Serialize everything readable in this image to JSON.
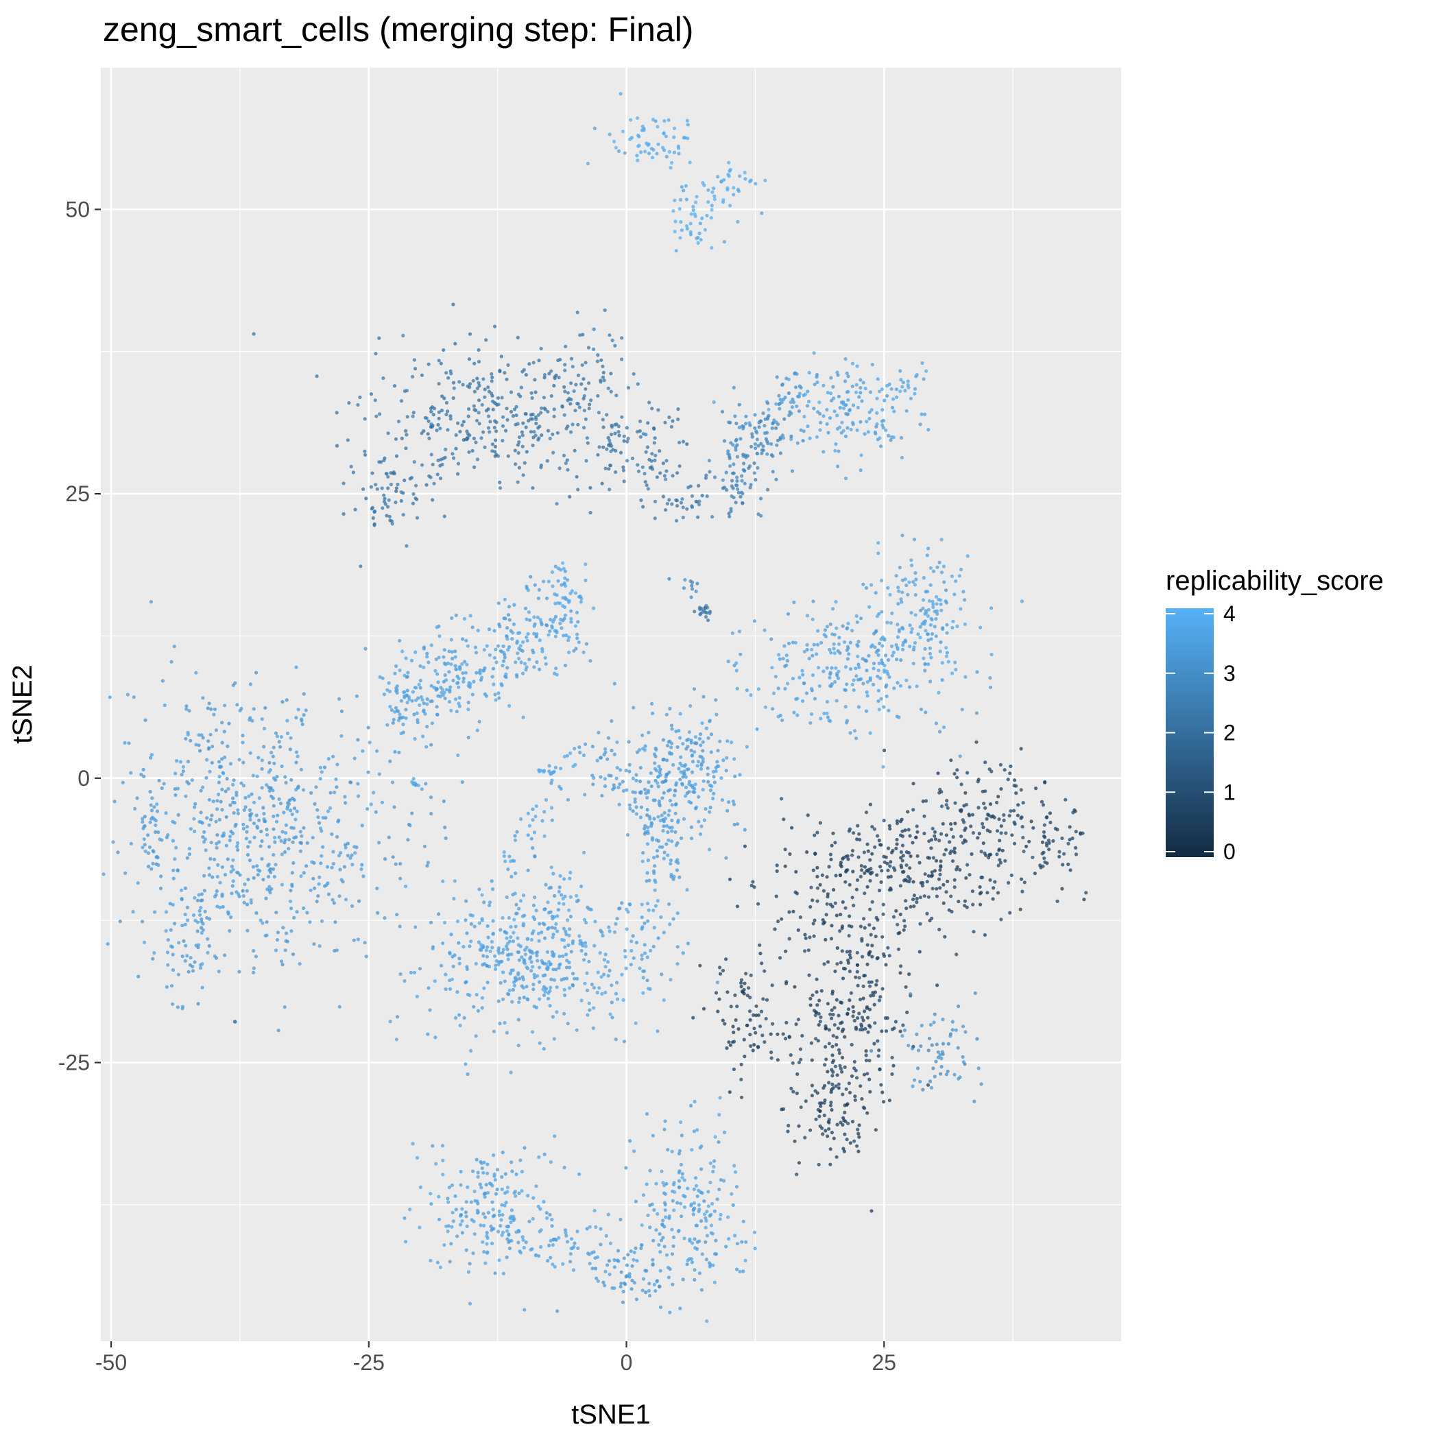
{
  "chart_data": {
    "type": "scatter",
    "title": "zeng_smart_cells (merging step: Final)",
    "xlabel": "tSNE1",
    "ylabel": "tSNE2",
    "xlim": [
      -51,
      48
    ],
    "ylim": [
      -49.5,
      62.5
    ],
    "x_ticks": [
      -50,
      -25,
      0,
      25
    ],
    "x_tick_labels": [
      "-50",
      "-25",
      "0",
      "25"
    ],
    "y_ticks": [
      -25,
      0,
      25,
      50
    ],
    "y_tick_labels": [
      "-25",
      "0",
      "25",
      "50"
    ],
    "grid": true,
    "legend": {
      "title": "replicability_score",
      "position": "right",
      "type": "colorbar",
      "range": [
        0,
        4
      ],
      "ticks": [
        0,
        1,
        2,
        3,
        4
      ],
      "tick_labels": [
        "0",
        "1",
        "2",
        "3",
        "4"
      ],
      "low_color": "#132B43",
      "high_color": "#56B1F7"
    },
    "background_color": "#EBEBEB",
    "grid_color": "#FFFFFF",
    "clusters": [
      {
        "cx": 3,
        "cy": 56,
        "sx": 2.2,
        "sy": 1.4,
        "n": 60,
        "score": 3.8
      },
      {
        "cx": 10,
        "cy": 52,
        "sx": 1.4,
        "sy": 1.2,
        "n": 35,
        "score": 3.8
      },
      {
        "cx": 6,
        "cy": 49.5,
        "sx": 1.6,
        "sy": 1.5,
        "n": 40,
        "score": 3.8
      },
      {
        "cx": -23,
        "cy": 24.5,
        "sx": 1.8,
        "sy": 1.4,
        "n": 60,
        "score": 2.2
      },
      {
        "cx": -13,
        "cy": 32,
        "sx": 6,
        "sy": 3.2,
        "n": 320,
        "score": 2.2
      },
      {
        "cx": -5,
        "cy": 35,
        "sx": 2.5,
        "sy": 2.5,
        "n": 60,
        "score": 2.2
      },
      {
        "cx": 1,
        "cy": 28,
        "sx": 2.8,
        "sy": 2.0,
        "n": 80,
        "score": 2.2
      },
      {
        "cx": 5.5,
        "cy": 24.5,
        "sx": 1.5,
        "sy": 1.0,
        "n": 30,
        "score": 2.3
      },
      {
        "cx": 11,
        "cy": 25.5,
        "sx": 1.6,
        "sy": 1.2,
        "n": 35,
        "score": 2.5
      },
      {
        "cx": 13,
        "cy": 30,
        "sx": 1.8,
        "sy": 2.0,
        "n": 60,
        "score": 2.8
      },
      {
        "cx": 21,
        "cy": 32.5,
        "sx": 4,
        "sy": 2.3,
        "n": 150,
        "score": 3.5
      },
      {
        "cx": 27,
        "cy": 34.5,
        "sx": 1.2,
        "sy": 1.0,
        "n": 25,
        "score": 3.6
      },
      {
        "cx": 6,
        "cy": 17,
        "sx": 0.8,
        "sy": 0.6,
        "n": 10,
        "score": 2.8
      },
      {
        "cx": 7.5,
        "cy": 14.5,
        "sx": 0.4,
        "sy": 0.4,
        "n": 18,
        "score": 2.3
      },
      {
        "cx": 22,
        "cy": 10,
        "sx": 5,
        "sy": 2.8,
        "n": 280,
        "score": 3.5
      },
      {
        "cx": 29,
        "cy": 15,
        "sx": 2.5,
        "sy": 2.5,
        "n": 120,
        "score": 3.6
      },
      {
        "cx": -36,
        "cy": -4,
        "sx": 7,
        "sy": 6,
        "n": 650,
        "score": 3.3
      },
      {
        "cx": -42,
        "cy": -14,
        "sx": 1.5,
        "sy": 3,
        "n": 60,
        "score": 3.3
      },
      {
        "cx": 5,
        "cy": 0,
        "sx": 3,
        "sy": 3.5,
        "n": 200,
        "score": 3.4
      },
      {
        "cx": 7.5,
        "cy": 0,
        "sx": 1.5,
        "sy": 2.5,
        "n": 40,
        "score": 3.4
      },
      {
        "cx": -10,
        "cy": -16,
        "sx": 5,
        "sy": 3,
        "n": 400,
        "score": 3.5
      },
      {
        "cx": -7,
        "cy": -11,
        "sx": 1.5,
        "sy": 2.5,
        "n": 40,
        "score": 3.5
      },
      {
        "cx": 2.5,
        "cy": -14,
        "sx": 2.5,
        "sy": 3.5,
        "n": 60,
        "score": 3.5
      },
      {
        "cx": 21,
        "cy": -20,
        "sx": 3,
        "sy": 5,
        "n": 270,
        "score": 0.6
      },
      {
        "cx": 26,
        "cy": -8,
        "sx": 6,
        "sy": 3,
        "n": 300,
        "score": 0.6
      },
      {
        "cx": 35,
        "cy": -4,
        "sx": 4,
        "sy": 3,
        "n": 150,
        "score": 0.7
      },
      {
        "cx": 42,
        "cy": -6,
        "sx": 1.3,
        "sy": 1.5,
        "n": 40,
        "score": 0.8
      },
      {
        "cx": 12,
        "cy": -21,
        "sx": 1.8,
        "sy": 2.5,
        "n": 80,
        "score": 0.6
      },
      {
        "cx": 20,
        "cy": -29,
        "sx": 2,
        "sy": 2.5,
        "n": 80,
        "score": 0.6
      },
      {
        "cx": 30,
        "cy": -24,
        "sx": 2,
        "sy": 2.5,
        "n": 60,
        "score": 3.0
      },
      {
        "cx": -13,
        "cy": -38,
        "sx": 3,
        "sy": 3,
        "n": 200,
        "score": 3.5
      },
      {
        "cx": -5.5,
        "cy": -41,
        "sx": 2,
        "sy": 1.2,
        "n": 50,
        "score": 3.5
      },
      {
        "cx": 6,
        "cy": -38,
        "sx": 3,
        "sy": 3.5,
        "n": 200,
        "score": 3.5
      },
      {
        "cx": 0.5,
        "cy": -43.5,
        "sx": 2.5,
        "sy": 1.2,
        "n": 60,
        "score": 3.3
      }
    ],
    "lines": [
      {
        "from": [
          -23,
          6
        ],
        "to": [
          -5,
          14.5
        ],
        "n": 350,
        "width": 2.2,
        "score": 3.5
      },
      {
        "from": [
          -5,
          14.5
        ],
        "to": [
          -6,
          19
        ],
        "n": 30,
        "width": 1.0,
        "score": 3.6
      },
      {
        "from": [
          -10,
          -6
        ],
        "to": [
          -4,
          3
        ],
        "n": 40,
        "width": 0.9,
        "score": 3.5
      },
      {
        "from": [
          -3,
          1
        ],
        "to": [
          3.5,
          -2
        ],
        "n": 60,
        "width": 1.2,
        "score": 3.3
      },
      {
        "from": [
          3,
          -3
        ],
        "to": [
          4,
          -9
        ],
        "n": 50,
        "width": 1.0,
        "score": 3.4
      },
      {
        "from": [
          9,
          26
        ],
        "to": [
          15,
          33
        ],
        "n": 50,
        "width": 1.3,
        "score": 2.8
      },
      {
        "from": [
          15,
          33
        ],
        "to": [
          17,
          35
        ],
        "n": 20,
        "width": 0.8,
        "score": 3.2
      },
      {
        "from": [
          -20,
          26
        ],
        "to": [
          -17,
          29
        ],
        "n": 15,
        "width": 0.8,
        "score": 2.3
      },
      {
        "from": [
          -2,
          30
        ],
        "to": [
          0,
          31
        ],
        "n": 10,
        "width": 0.6,
        "score": 2.2
      },
      {
        "from": [
          -46,
          0
        ],
        "to": [
          -46,
          -8
        ],
        "n": 25,
        "width": 0.7,
        "score": 3.3
      },
      {
        "from": [
          -21,
          -0.3
        ],
        "to": [
          -20,
          -0.5
        ],
        "n": 8,
        "width": 0.2,
        "score": 3.6
      },
      {
        "from": [
          -12,
          -6.5
        ],
        "to": [
          -11,
          -7.5
        ],
        "n": 6,
        "width": 0.2,
        "score": 3.6
      },
      {
        "from": [
          -8.5,
          0.6
        ],
        "to": [
          -7,
          0.6
        ],
        "n": 10,
        "width": 0.1,
        "score": 3.6
      },
      {
        "from": [
          -38,
          -21.3
        ],
        "to": [
          -38,
          -21.5
        ],
        "n": 2,
        "width": 0.05,
        "score": 2.5
      }
    ]
  }
}
